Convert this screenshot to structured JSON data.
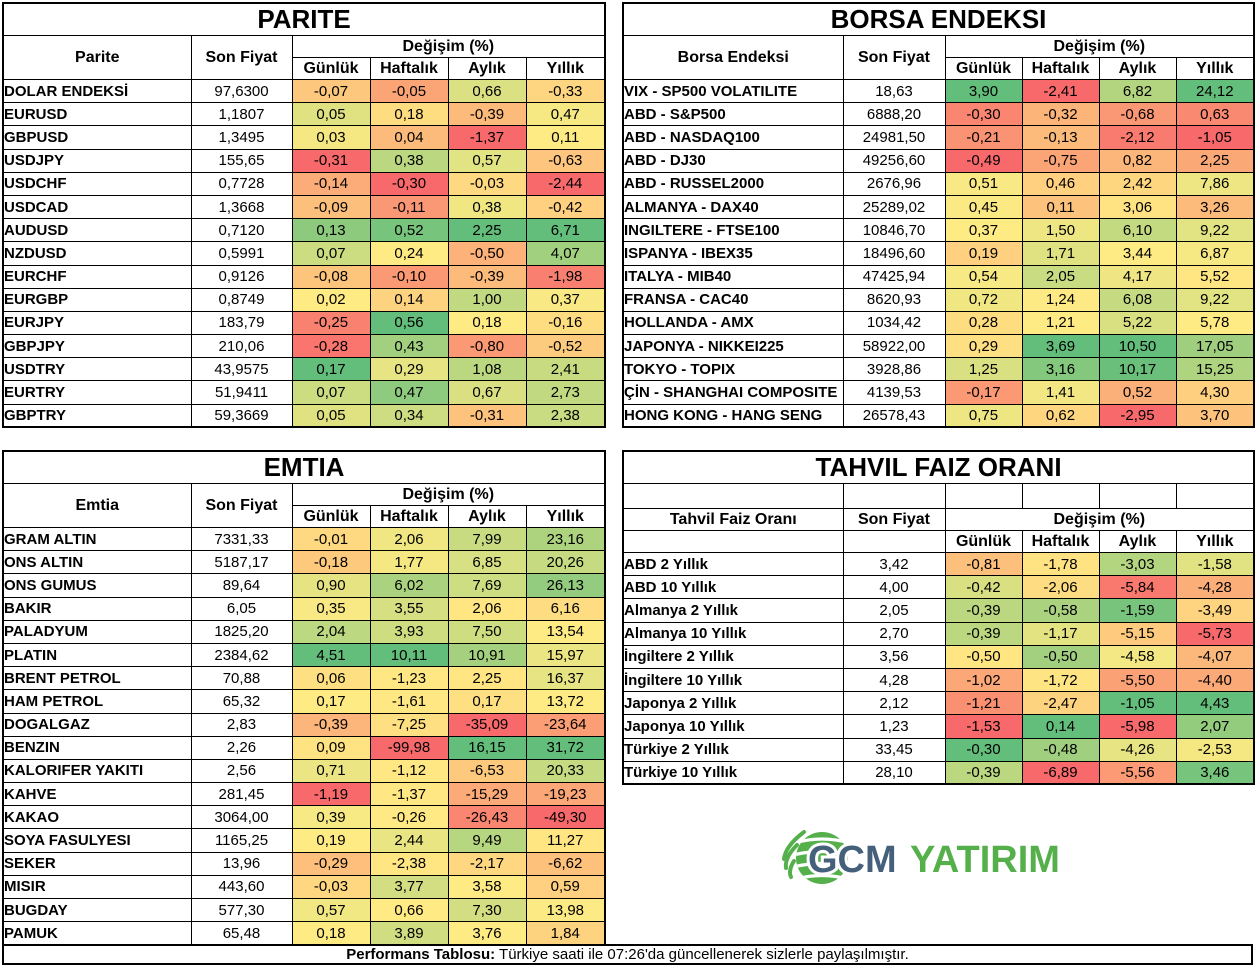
{
  "headers": {
    "son_fiyat": "Son Fiyat",
    "degisim": "Değişim (%)",
    "periods": [
      "Günlük",
      "Haftalık",
      "Aylık",
      "Yıllık"
    ]
  },
  "colors": {
    "scale_min": "#F8696B",
    "scale_mid": "#FFEB84",
    "scale_max": "#63BE7B",
    "logo_blue": "#44607B",
    "logo_green": "#55B04B"
  },
  "logo": {
    "part1": "GCM",
    "part2": "YATIRIM"
  },
  "footer": {
    "label": "Performans Tablosu:",
    "text": " Türkiye saati ile 07:26'da güncellenerek sizlerle paylaşılmıştır."
  },
  "tables": [
    {
      "id": "parite",
      "title": "PARITE",
      "label_header": "Parite",
      "layout": "standard",
      "rows": [
        {
          "label": "DOLAR ENDEKSİ",
          "price": "97,6300",
          "changes": [
            "-0,07",
            "-0,05",
            "0,66",
            "-0,33"
          ]
        },
        {
          "label": "EURUSD",
          "price": "1,1807",
          "changes": [
            "0,05",
            "0,18",
            "-0,39",
            "0,47"
          ]
        },
        {
          "label": "GBPUSD",
          "price": "1,3495",
          "changes": [
            "0,03",
            "0,04",
            "-1,37",
            "0,11"
          ]
        },
        {
          "label": "USDJPY",
          "price": "155,65",
          "changes": [
            "-0,31",
            "0,38",
            "0,57",
            "-0,63"
          ]
        },
        {
          "label": "USDCHF",
          "price": "0,7728",
          "changes": [
            "-0,14",
            "-0,30",
            "-0,03",
            "-2,44"
          ]
        },
        {
          "label": "USDCAD",
          "price": "1,3668",
          "changes": [
            "-0,09",
            "-0,11",
            "0,38",
            "-0,42"
          ]
        },
        {
          "label": "AUDUSD",
          "price": "0,7120",
          "changes": [
            "0,13",
            "0,52",
            "2,25",
            "6,71"
          ]
        },
        {
          "label": "NZDUSD",
          "price": "0,5991",
          "changes": [
            "0,07",
            "0,24",
            "-0,50",
            "4,07"
          ]
        },
        {
          "label": "EURCHF",
          "price": "0,9126",
          "changes": [
            "-0,08",
            "-0,10",
            "-0,39",
            "-1,98"
          ]
        },
        {
          "label": "EURGBP",
          "price": "0,8749",
          "changes": [
            "0,02",
            "0,14",
            "1,00",
            "0,37"
          ]
        },
        {
          "label": "EURJPY",
          "price": "183,79",
          "changes": [
            "-0,25",
            "0,56",
            "0,18",
            "-0,16"
          ]
        },
        {
          "label": "GBPJPY",
          "price": "210,06",
          "changes": [
            "-0,28",
            "0,43",
            "-0,80",
            "-0,52"
          ]
        },
        {
          "label": "USDTRY",
          "price": "43,9575",
          "changes": [
            "0,17",
            "0,29",
            "1,08",
            "2,41"
          ]
        },
        {
          "label": "EURTRY",
          "price": "51,9411",
          "changes": [
            "0,07",
            "0,47",
            "0,67",
            "2,73"
          ]
        },
        {
          "label": "GBPTRY",
          "price": "59,3669",
          "changes": [
            "0,05",
            "0,34",
            "-0,31",
            "2,38"
          ]
        }
      ]
    },
    {
      "id": "borsa",
      "title": "BORSA ENDEKSI",
      "label_header": "Borsa Endeksi",
      "layout": "standard",
      "rows": [
        {
          "label": "VIX  - SP500 VOLATILITE",
          "price": "18,63",
          "changes": [
            "3,90",
            "-2,41",
            "6,82",
            "24,12"
          ]
        },
        {
          "label": "ABD - S&P500",
          "price": "6888,20",
          "changes": [
            "-0,30",
            "-0,32",
            "-0,68",
            "0,63"
          ]
        },
        {
          "label": "ABD - NASDAQ100",
          "price": "24981,50",
          "changes": [
            "-0,21",
            "-0,13",
            "-2,12",
            "-1,05"
          ]
        },
        {
          "label": "ABD - DJ30",
          "price": "49256,60",
          "changes": [
            "-0,49",
            "-0,75",
            "0,82",
            "2,25"
          ]
        },
        {
          "label": "ABD - RUSSEL2000",
          "price": "2676,96",
          "changes": [
            "0,51",
            "0,46",
            "2,42",
            "7,86"
          ]
        },
        {
          "label": "ALMANYA - DAX40",
          "price": "25289,02",
          "changes": [
            "0,45",
            "0,11",
            "3,06",
            "3,26"
          ]
        },
        {
          "label": "INGILTERE - FTSE100",
          "price": "10846,70",
          "changes": [
            "0,37",
            "1,50",
            "6,10",
            "9,22"
          ]
        },
        {
          "label": "ISPANYA - IBEX35",
          "price": "18496,60",
          "changes": [
            "0,19",
            "1,71",
            "3,44",
            "6,87"
          ]
        },
        {
          "label": "ITALYA - MIB40",
          "price": "47425,94",
          "changes": [
            "0,54",
            "2,05",
            "4,17",
            "5,52"
          ]
        },
        {
          "label": "FRANSA - CAC40",
          "price": "8620,93",
          "changes": [
            "0,72",
            "1,24",
            "6,08",
            "9,22"
          ]
        },
        {
          "label": "HOLLANDA - AMX",
          "price": "1034,42",
          "changes": [
            "0,28",
            "1,21",
            "5,22",
            "5,78"
          ]
        },
        {
          "label": "JAPONYA - NIKKEI225",
          "price": "58922,00",
          "changes": [
            "0,29",
            "3,69",
            "10,50",
            "17,05"
          ]
        },
        {
          "label": "TOKYO - TOPIX",
          "price": "3928,86",
          "changes": [
            "1,25",
            "3,16",
            "10,17",
            "15,25"
          ]
        },
        {
          "label": "ÇİN - SHANGHAI COMPOSITE",
          "price": "4139,53",
          "changes": [
            "-0,17",
            "1,41",
            "0,52",
            "4,30"
          ]
        },
        {
          "label": "HONG KONG - HANG SENG",
          "price": "26578,43",
          "changes": [
            "0,75",
            "0,62",
            "-2,95",
            "3,70"
          ]
        }
      ]
    },
    {
      "id": "emtia",
      "title": "EMTIA",
      "label_header": "Emtia",
      "layout": "standard",
      "rows": [
        {
          "label": "GRAM ALTIN",
          "price": "7331,33",
          "changes": [
            "-0,01",
            "2,06",
            "7,99",
            "23,16"
          ]
        },
        {
          "label": "ONS ALTIN",
          "price": "5187,17",
          "changes": [
            "-0,18",
            "1,77",
            "6,85",
            "20,26"
          ]
        },
        {
          "label": "ONS GUMUS",
          "price": "89,64",
          "changes": [
            "0,90",
            "6,02",
            "7,69",
            "26,13"
          ]
        },
        {
          "label": "BAKIR",
          "price": "6,05",
          "changes": [
            "0,35",
            "3,55",
            "2,06",
            "6,16"
          ]
        },
        {
          "label": "PALADYUM",
          "price": "1825,20",
          "changes": [
            "2,04",
            "3,93",
            "7,50",
            "13,54"
          ]
        },
        {
          "label": "PLATIN",
          "price": "2384,62",
          "changes": [
            "4,51",
            "10,11",
            "10,91",
            "15,97"
          ]
        },
        {
          "label": "BRENT PETROL",
          "price": "70,88",
          "changes": [
            "0,06",
            "-1,23",
            "2,25",
            "16,37"
          ]
        },
        {
          "label": "HAM PETROL",
          "price": "65,32",
          "changes": [
            "0,17",
            "-1,61",
            "0,17",
            "13,72"
          ]
        },
        {
          "label": "DOGALGAZ",
          "price": "2,83",
          "changes": [
            "-0,39",
            "-7,25",
            "-35,09",
            "-23,64"
          ]
        },
        {
          "label": "BENZIN",
          "price": "2,26",
          "changes": [
            "0,09",
            "-99,98",
            "16,15",
            "31,72"
          ]
        },
        {
          "label": "KALORIFER YAKITI",
          "price": "2,56",
          "changes": [
            "0,71",
            "-1,12",
            "-6,53",
            "20,33"
          ]
        },
        {
          "label": "KAHVE",
          "price": "281,45",
          "changes": [
            "-1,19",
            "-1,37",
            "-15,29",
            "-19,23"
          ]
        },
        {
          "label": "KAKAO",
          "price": "3064,00",
          "changes": [
            "0,39",
            "-0,26",
            "-26,43",
            "-49,30"
          ]
        },
        {
          "label": "SOYA FASULYESI",
          "price": "1165,25",
          "changes": [
            "0,19",
            "2,44",
            "9,49",
            "11,27"
          ]
        },
        {
          "label": "SEKER",
          "price": "13,96",
          "changes": [
            "-0,29",
            "-2,38",
            "-2,17",
            "-6,62"
          ]
        },
        {
          "label": "MISIR",
          "price": "443,60",
          "changes": [
            "-0,03",
            "3,77",
            "3,58",
            "0,59"
          ]
        },
        {
          "label": "BUGDAY",
          "price": "577,30",
          "changes": [
            "0,57",
            "0,66",
            "7,30",
            "13,98"
          ]
        },
        {
          "label": "PAMUK",
          "price": "65,48",
          "changes": [
            "0,18",
            "3,89",
            "3,76",
            "1,84"
          ]
        }
      ]
    },
    {
      "id": "tahvil",
      "title": "TAHVIL FAIZ ORANI",
      "label_header": "Tahvil Faiz Oranı",
      "layout": "spacer",
      "rows": [
        {
          "label": "ABD 2 Yıllık",
          "price": "3,42",
          "changes": [
            "-0,81",
            "-1,78",
            "-3,03",
            "-1,58"
          ]
        },
        {
          "label": "ABD 10 Yıllık",
          "price": "4,00",
          "changes": [
            "-0,42",
            "-2,06",
            "-5,84",
            "-4,28"
          ]
        },
        {
          "label": "Almanya 2 Yıllık",
          "price": "2,05",
          "changes": [
            "-0,39",
            "-0,58",
            "-1,59",
            "-3,49"
          ]
        },
        {
          "label": "Almanya 10 Yıllık",
          "price": "2,70",
          "changes": [
            "-0,39",
            "-1,17",
            "-5,15",
            "-5,73"
          ]
        },
        {
          "label": "İngiltere 2 Yıllık",
          "price": "3,56",
          "changes": [
            "-0,50",
            "-0,50",
            "-4,58",
            "-4,07"
          ]
        },
        {
          "label": "İngiltere 10 Yıllık",
          "price": "4,28",
          "changes": [
            "-1,02",
            "-1,72",
            "-5,50",
            "-4,40"
          ]
        },
        {
          "label": "Japonya 2 Yıllık",
          "price": "2,12",
          "changes": [
            "-1,21",
            "-2,47",
            "-1,05",
            "4,43"
          ]
        },
        {
          "label": "Japonya 10 Yıllık",
          "price": "1,23",
          "changes": [
            "-1,53",
            "0,14",
            "-5,98",
            "2,07"
          ]
        },
        {
          "label": "Türkiye 2 Yıllık",
          "price": "33,45",
          "changes": [
            "-0,30",
            "-0,48",
            "-4,26",
            "-2,53"
          ]
        },
        {
          "label": "Türkiye 10 Yıllık",
          "price": "28,10",
          "changes": [
            "-0,39",
            "-6,89",
            "-5,56",
            "3,46"
          ]
        }
      ]
    }
  ]
}
